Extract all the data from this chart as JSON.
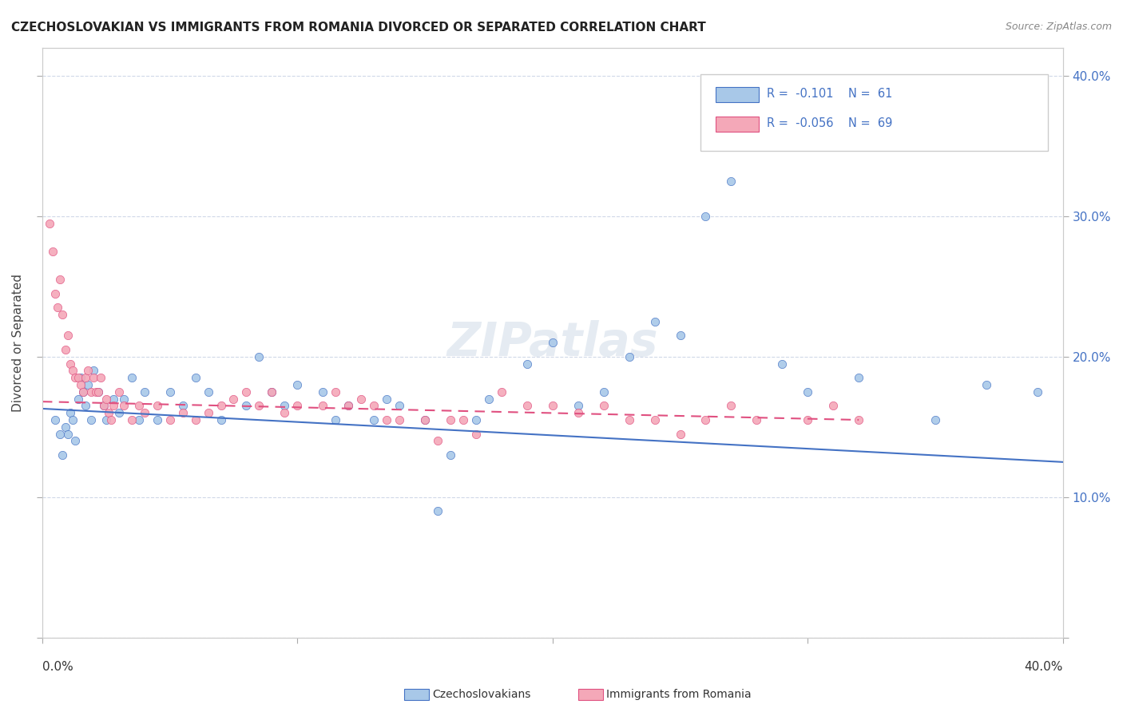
{
  "title": "CZECHOSLOVAKIAN VS IMMIGRANTS FROM ROMANIA DIVORCED OR SEPARATED CORRELATION CHART",
  "source": "Source: ZipAtlas.com",
  "ylabel": "Divorced or Separated",
  "legend_blue_r": "R =  -0.101",
  "legend_blue_n": "N =  61",
  "legend_pink_r": "R =  -0.056",
  "legend_pink_n": "N =  69",
  "watermark": "ZIPatlas",
  "xlim": [
    0.0,
    0.4
  ],
  "ylim": [
    0.0,
    0.42
  ],
  "blue_scatter": [
    [
      0.005,
      0.155
    ],
    [
      0.007,
      0.145
    ],
    [
      0.008,
      0.13
    ],
    [
      0.009,
      0.15
    ],
    [
      0.01,
      0.145
    ],
    [
      0.011,
      0.16
    ],
    [
      0.012,
      0.155
    ],
    [
      0.013,
      0.14
    ],
    [
      0.014,
      0.17
    ],
    [
      0.015,
      0.185
    ],
    [
      0.016,
      0.175
    ],
    [
      0.017,
      0.165
    ],
    [
      0.018,
      0.18
    ],
    [
      0.019,
      0.155
    ],
    [
      0.02,
      0.19
    ],
    [
      0.022,
      0.175
    ],
    [
      0.024,
      0.165
    ],
    [
      0.025,
      0.155
    ],
    [
      0.028,
      0.17
    ],
    [
      0.03,
      0.16
    ],
    [
      0.032,
      0.17
    ],
    [
      0.035,
      0.185
    ],
    [
      0.038,
      0.155
    ],
    [
      0.04,
      0.175
    ],
    [
      0.045,
      0.155
    ],
    [
      0.05,
      0.175
    ],
    [
      0.055,
      0.165
    ],
    [
      0.06,
      0.185
    ],
    [
      0.065,
      0.175
    ],
    [
      0.07,
      0.155
    ],
    [
      0.08,
      0.165
    ],
    [
      0.085,
      0.2
    ],
    [
      0.09,
      0.175
    ],
    [
      0.095,
      0.165
    ],
    [
      0.1,
      0.18
    ],
    [
      0.11,
      0.175
    ],
    [
      0.115,
      0.155
    ],
    [
      0.12,
      0.165
    ],
    [
      0.13,
      0.155
    ],
    [
      0.135,
      0.17
    ],
    [
      0.14,
      0.165
    ],
    [
      0.15,
      0.155
    ],
    [
      0.155,
      0.09
    ],
    [
      0.16,
      0.13
    ],
    [
      0.17,
      0.155
    ],
    [
      0.175,
      0.17
    ],
    [
      0.19,
      0.195
    ],
    [
      0.2,
      0.21
    ],
    [
      0.21,
      0.165
    ],
    [
      0.22,
      0.175
    ],
    [
      0.23,
      0.2
    ],
    [
      0.24,
      0.225
    ],
    [
      0.25,
      0.215
    ],
    [
      0.26,
      0.3
    ],
    [
      0.27,
      0.325
    ],
    [
      0.29,
      0.195
    ],
    [
      0.3,
      0.175
    ],
    [
      0.32,
      0.185
    ],
    [
      0.35,
      0.155
    ],
    [
      0.37,
      0.18
    ],
    [
      0.39,
      0.175
    ]
  ],
  "pink_scatter": [
    [
      0.003,
      0.295
    ],
    [
      0.004,
      0.275
    ],
    [
      0.005,
      0.245
    ],
    [
      0.006,
      0.235
    ],
    [
      0.007,
      0.255
    ],
    [
      0.008,
      0.23
    ],
    [
      0.009,
      0.205
    ],
    [
      0.01,
      0.215
    ],
    [
      0.011,
      0.195
    ],
    [
      0.012,
      0.19
    ],
    [
      0.013,
      0.185
    ],
    [
      0.014,
      0.185
    ],
    [
      0.015,
      0.18
    ],
    [
      0.016,
      0.175
    ],
    [
      0.017,
      0.185
    ],
    [
      0.018,
      0.19
    ],
    [
      0.019,
      0.175
    ],
    [
      0.02,
      0.185
    ],
    [
      0.021,
      0.175
    ],
    [
      0.022,
      0.175
    ],
    [
      0.023,
      0.185
    ],
    [
      0.024,
      0.165
    ],
    [
      0.025,
      0.17
    ],
    [
      0.026,
      0.16
    ],
    [
      0.027,
      0.155
    ],
    [
      0.028,
      0.165
    ],
    [
      0.03,
      0.175
    ],
    [
      0.032,
      0.165
    ],
    [
      0.035,
      0.155
    ],
    [
      0.038,
      0.165
    ],
    [
      0.04,
      0.16
    ],
    [
      0.045,
      0.165
    ],
    [
      0.05,
      0.155
    ],
    [
      0.055,
      0.16
    ],
    [
      0.06,
      0.155
    ],
    [
      0.065,
      0.16
    ],
    [
      0.07,
      0.165
    ],
    [
      0.075,
      0.17
    ],
    [
      0.08,
      0.175
    ],
    [
      0.085,
      0.165
    ],
    [
      0.09,
      0.175
    ],
    [
      0.095,
      0.16
    ],
    [
      0.1,
      0.165
    ],
    [
      0.11,
      0.165
    ],
    [
      0.115,
      0.175
    ],
    [
      0.12,
      0.165
    ],
    [
      0.125,
      0.17
    ],
    [
      0.13,
      0.165
    ],
    [
      0.135,
      0.155
    ],
    [
      0.14,
      0.155
    ],
    [
      0.15,
      0.155
    ],
    [
      0.155,
      0.14
    ],
    [
      0.16,
      0.155
    ],
    [
      0.165,
      0.155
    ],
    [
      0.17,
      0.145
    ],
    [
      0.18,
      0.175
    ],
    [
      0.19,
      0.165
    ],
    [
      0.2,
      0.165
    ],
    [
      0.21,
      0.16
    ],
    [
      0.22,
      0.165
    ],
    [
      0.23,
      0.155
    ],
    [
      0.24,
      0.155
    ],
    [
      0.25,
      0.145
    ],
    [
      0.26,
      0.155
    ],
    [
      0.27,
      0.165
    ],
    [
      0.28,
      0.155
    ],
    [
      0.3,
      0.155
    ],
    [
      0.31,
      0.165
    ],
    [
      0.32,
      0.155
    ]
  ],
  "blue_line_x": [
    0.0,
    0.4
  ],
  "blue_line_y": [
    0.163,
    0.125
  ],
  "pink_line_x": [
    0.0,
    0.32
  ],
  "pink_line_y": [
    0.168,
    0.155
  ],
  "blue_color": "#a8c8e8",
  "pink_color": "#f4a8b8",
  "blue_line_color": "#4472c4",
  "pink_line_color": "#e05080",
  "grid_color": "#d0d8e8",
  "bg_color": "#ffffff",
  "title_color": "#222222",
  "right_axis_color": "#4472c4"
}
